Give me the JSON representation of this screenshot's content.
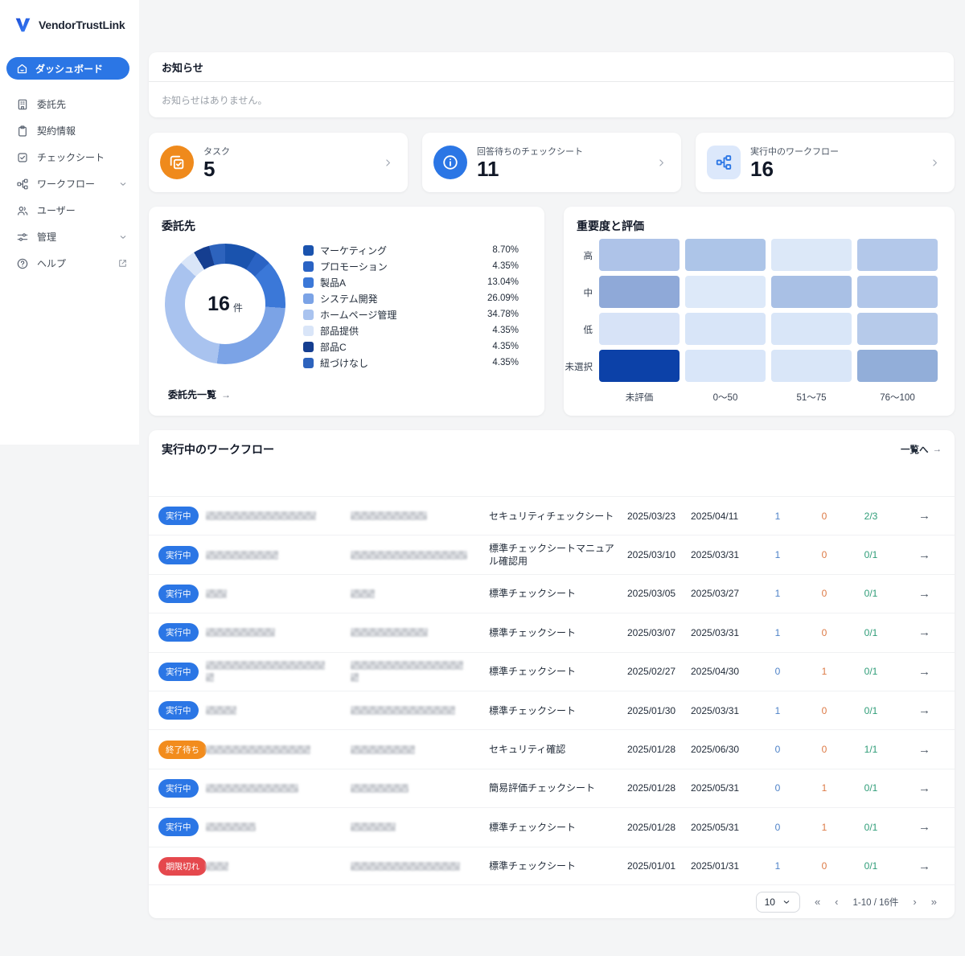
{
  "sidebar": {
    "logo_text": "VendorTrustLink",
    "active_item": {
      "label": "ダッシュボード",
      "icon": "home-icon"
    },
    "items": [
      {
        "label": "委託先",
        "icon": "building-icon",
        "chevron": false,
        "external": false
      },
      {
        "label": "契約情報",
        "icon": "clipboard-icon",
        "chevron": false,
        "external": false
      },
      {
        "label": "チェックシート",
        "icon": "check-square-icon",
        "chevron": false,
        "external": false
      },
      {
        "label": "ワークフロー",
        "icon": "workflow-icon",
        "chevron": true,
        "external": false
      },
      {
        "label": "ユーザー",
        "icon": "users-icon",
        "chevron": false,
        "external": false
      },
      {
        "label": "管理",
        "icon": "sliders-icon",
        "chevron": true,
        "external": false
      },
      {
        "label": "ヘルプ",
        "icon": "help-icon",
        "chevron": false,
        "external": true
      }
    ]
  },
  "announcement": {
    "title": "お知らせ",
    "empty_message": "お知らせはありません。"
  },
  "stat_cards": [
    {
      "label": "タスク",
      "value": "5",
      "icon": "tasks-icon",
      "icon_bg": "#ef8a1c",
      "icon_fg": "#ffffff",
      "shape": "circle"
    },
    {
      "label": "回答待ちのチェックシート",
      "value": "11",
      "icon": "info-icon",
      "icon_bg": "#2b76e5",
      "icon_fg": "#ffffff",
      "shape": "circle"
    },
    {
      "label": "実行中のワークフロー",
      "value": "16",
      "icon": "workflow-icon",
      "icon_bg": "#dce8fb",
      "icon_fg": "#2b76e5",
      "shape": "rounded"
    }
  ],
  "vendors_card": {
    "title": "委託先",
    "center_value": "16",
    "center_unit": "件",
    "link_label": "委託先一覧",
    "link_arrow": "→",
    "chart_data": {
      "type": "pie",
      "title": "委託先",
      "total_label": "16 件",
      "legend_position": "right",
      "segments": [
        {
          "label": "マーケティング",
          "percent": 8.7,
          "display": "8.70%",
          "color": "#1a53ae"
        },
        {
          "label": "プロモーション",
          "percent": 4.35,
          "display": "4.35%",
          "color": "#2a63c4"
        },
        {
          "label": "製品A",
          "percent": 13.04,
          "display": "13.04%",
          "color": "#3b78d8"
        },
        {
          "label": "システム開発",
          "percent": 26.09,
          "display": "26.09%",
          "color": "#7ba3e6"
        },
        {
          "label": "ホームページ管理",
          "percent": 34.78,
          "display": "34.78%",
          "color": "#a9c3ef"
        },
        {
          "label": "部品提供",
          "percent": 4.35,
          "display": "4.35%",
          "color": "#d9e5f8"
        },
        {
          "label": "部品C",
          "percent": 4.35,
          "display": "4.35%",
          "color": "#153e90"
        },
        {
          "label": "紐づけなし",
          "percent": 4.35,
          "display": "4.35%",
          "color": "#2d63bd"
        }
      ]
    }
  },
  "heatmap_card": {
    "title": "重要度と評価",
    "chart_data": {
      "type": "heatmap",
      "row_labels": [
        "高",
        "中",
        "低",
        "未選択"
      ],
      "col_labels": [
        "未評価",
        "0〜50",
        "51〜75",
        "76〜100"
      ],
      "cell_colors": [
        [
          "#aec3e8",
          "#adc5e8",
          "#dce8f8",
          "#b3c8ea"
        ],
        [
          "#8fa9d8",
          "#dde9f9",
          "#a9c0e5",
          "#b1c6e9"
        ],
        [
          "#d7e3f7",
          "#d8e5f8",
          "#d9e6f8",
          "#b6caea"
        ],
        [
          "#0c41a8",
          "#d9e6f9",
          "#d9e6f8",
          "#92aed9"
        ]
      ]
    }
  },
  "workflow_table": {
    "title": "実行中のワークフロー",
    "link_label": "一覧へ",
    "link_arrow": "→",
    "row_arrow": "→",
    "status_colors": {
      "running": "#2b76e5",
      "waiting": "#f28c1d",
      "expired": "#e5484d"
    },
    "rows": [
      {
        "status_label": "実行中",
        "status_type": "running",
        "name_redact": [
          137
        ],
        "vendor_redact": [
          95
        ],
        "sheet": "セキュリティチェックシート",
        "start": "2025/03/23",
        "due": "2025/04/11",
        "n1": "1",
        "n2": "0",
        "frac": "2/3"
      },
      {
        "status_label": "実行中",
        "status_type": "running",
        "name_redact": [
          90
        ],
        "vendor_redact": [
          145
        ],
        "sheet": "標準チェックシートマニュアル確認用",
        "start": "2025/03/10",
        "due": "2025/03/31",
        "n1": "1",
        "n2": "0",
        "frac": "0/1"
      },
      {
        "status_label": "実行中",
        "status_type": "running",
        "name_redact": [
          26
        ],
        "vendor_redact": [
          30
        ],
        "sheet": "標準チェックシート",
        "start": "2025/03/05",
        "due": "2025/03/27",
        "n1": "1",
        "n2": "0",
        "frac": "0/1"
      },
      {
        "status_label": "実行中",
        "status_type": "running",
        "name_redact": [
          86
        ],
        "vendor_redact": [
          96
        ],
        "sheet": "標準チェックシート",
        "start": "2025/03/07",
        "due": "2025/03/31",
        "n1": "1",
        "n2": "0",
        "frac": "0/1"
      },
      {
        "status_label": "実行中",
        "status_type": "running",
        "name_redact": [
          148,
          10
        ],
        "vendor_redact": [
          140,
          10
        ],
        "sheet": "標準チェックシート",
        "start": "2025/02/27",
        "due": "2025/04/30",
        "n1": "0",
        "n2": "1",
        "frac": "0/1"
      },
      {
        "status_label": "実行中",
        "status_type": "running",
        "name_redact": [
          38
        ],
        "vendor_redact": [
          130
        ],
        "sheet": "標準チェックシート",
        "start": "2025/01/30",
        "due": "2025/03/31",
        "n1": "1",
        "n2": "0",
        "frac": "0/1"
      },
      {
        "status_label": "終了待ち",
        "status_type": "waiting",
        "name_redact": [
          130
        ],
        "vendor_redact": [
          80
        ],
        "sheet": "セキュリティ確認",
        "start": "2025/01/28",
        "due": "2025/06/30",
        "n1": "0",
        "n2": "0",
        "frac": "1/1"
      },
      {
        "status_label": "実行中",
        "status_type": "running",
        "name_redact": [
          115
        ],
        "vendor_redact": [
          72
        ],
        "sheet": "簡易評価チェックシート",
        "start": "2025/01/28",
        "due": "2025/05/31",
        "n1": "0",
        "n2": "1",
        "frac": "0/1"
      },
      {
        "status_label": "実行中",
        "status_type": "running",
        "name_redact": [
          62
        ],
        "vendor_redact": [
          56
        ],
        "sheet": "標準チェックシート",
        "start": "2025/01/28",
        "due": "2025/05/31",
        "n1": "0",
        "n2": "1",
        "frac": "0/1"
      },
      {
        "status_label": "期限切れ",
        "status_type": "expired",
        "name_redact": [
          28
        ],
        "vendor_redact": [
          136
        ],
        "sheet": "標準チェックシート",
        "start": "2025/01/01",
        "due": "2025/01/31",
        "n1": "1",
        "n2": "0",
        "frac": "0/1"
      }
    ],
    "pagination": {
      "page_size": "10",
      "first": "«",
      "prev": "‹",
      "next": "›",
      "last": "»",
      "range_label": "1-10 / 16件"
    }
  }
}
